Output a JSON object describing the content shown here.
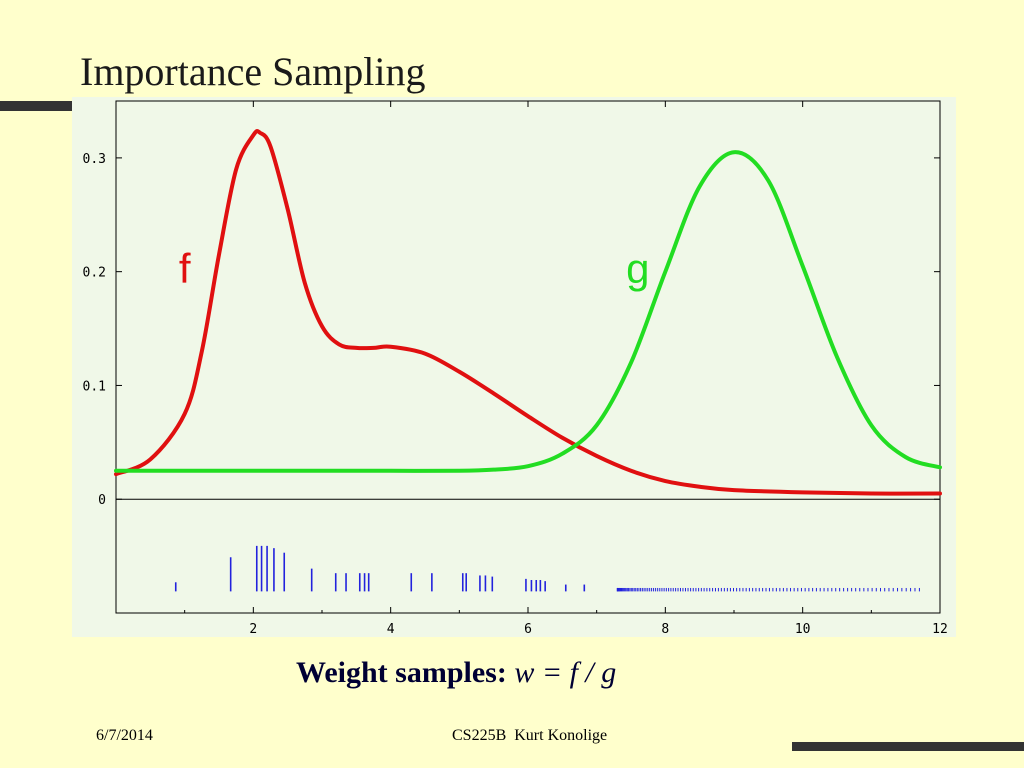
{
  "slide": {
    "title": "Importance Sampling",
    "formula_label": "Weight samples:",
    "formula_math": "w = f / g",
    "footer_date": "6/7/2014",
    "footer_center": "CS225B  Kurt Konolige"
  },
  "chart_data": {
    "type": "line",
    "xlim": [
      0,
      12
    ],
    "ylim": [
      -0.1,
      0.35
    ],
    "x_ticks": [
      2,
      4,
      6,
      8,
      10,
      12
    ],
    "y_ticks": [
      0,
      0.1,
      0.2,
      0.3
    ],
    "x_tick_labels": [
      "2",
      "4",
      "6",
      "8",
      "10",
      "12"
    ],
    "y_tick_labels": [
      "0",
      "0.1",
      "0.2",
      "0.3"
    ],
    "grid": false,
    "background": "#f0f8e8",
    "series": [
      {
        "name": "f",
        "color": "#e01010",
        "x": [
          0,
          0.5,
          1,
          1.25,
          1.5,
          1.75,
          2,
          2.1,
          2.25,
          2.5,
          2.75,
          3,
          3.25,
          3.5,
          3.75,
          4,
          4.5,
          5,
          5.5,
          6,
          6.5,
          7,
          7.5,
          8,
          8.5,
          9,
          10,
          11,
          12
        ],
        "y": [
          0.022,
          0.035,
          0.075,
          0.13,
          0.215,
          0.29,
          0.32,
          0.322,
          0.31,
          0.255,
          0.19,
          0.152,
          0.136,
          0.133,
          0.133,
          0.134,
          0.128,
          0.112,
          0.093,
          0.073,
          0.054,
          0.038,
          0.025,
          0.016,
          0.011,
          0.008,
          0.006,
          0.005,
          0.005
        ]
      },
      {
        "name": "g",
        "color": "#22dd22",
        "x": [
          0,
          1,
          2,
          3,
          4,
          5,
          5.5,
          6,
          6.5,
          7,
          7.5,
          8,
          8.5,
          9,
          9.5,
          10,
          10.5,
          11,
          11.5,
          12
        ],
        "y": [
          0.025,
          0.025,
          0.025,
          0.025,
          0.025,
          0.025,
          0.026,
          0.029,
          0.04,
          0.065,
          0.12,
          0.2,
          0.275,
          0.305,
          0.28,
          0.205,
          0.125,
          0.065,
          0.037,
          0.028
        ]
      }
    ],
    "annotations": [
      {
        "text": "f",
        "x": 1,
        "y": 0.19,
        "color": "#e01010"
      },
      {
        "text": "g",
        "x": 7.6,
        "y": 0.19,
        "color": "#22dd22"
      }
    ],
    "samples": {
      "color": "#2222dd",
      "baseline": -0.081,
      "x": [
        0.87,
        1.67,
        2.05,
        2.12,
        2.2,
        2.3,
        2.45,
        2.85,
        3.2,
        3.35,
        3.55,
        3.62,
        3.68,
        4.3,
        4.6,
        5.05,
        5.1,
        5.3,
        5.38,
        5.48,
        5.97,
        6.05,
        6.12,
        6.18,
        6.25,
        6.55,
        6.82
      ],
      "height": [
        0.008,
        0.03,
        0.04,
        0.04,
        0.04,
        0.038,
        0.034,
        0.02,
        0.016,
        0.016,
        0.016,
        0.016,
        0.016,
        0.016,
        0.016,
        0.016,
        0.016,
        0.014,
        0.014,
        0.013,
        0.011,
        0.01,
        0.01,
        0.01,
        0.009,
        0.006,
        0.006
      ],
      "dense_from": 7.3,
      "dense_to": 11.7,
      "dense_count": 110,
      "dense_height": 0.003
    }
  }
}
